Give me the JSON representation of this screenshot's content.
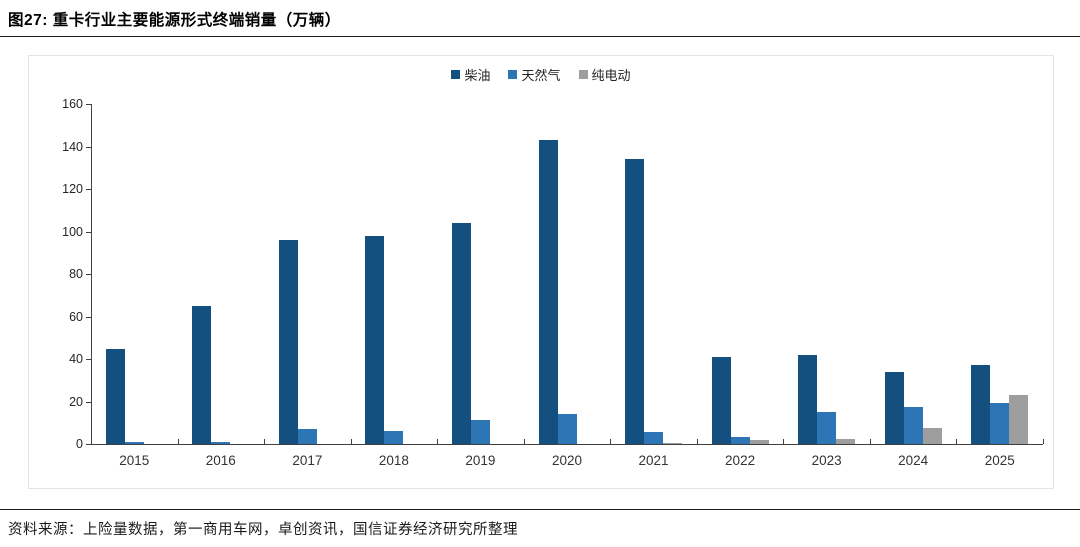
{
  "header": {
    "title": "图27: 重卡行业主要能源形式终端销量（万辆）"
  },
  "footer": {
    "source": "资料来源：上险量数据，第一商用车网，卓创资讯，国信证券经济研究所整理"
  },
  "chart_data": {
    "type": "bar",
    "title": "重卡行业主要能源形式终端销量（万辆）",
    "categories": [
      "2015",
      "2016",
      "2017",
      "2018",
      "2019",
      "2020",
      "2021",
      "2022",
      "2023",
      "2024",
      "2025"
    ],
    "series": [
      {
        "name": "柴油",
        "id": "diesel",
        "color": "#134F7F",
        "values": [
          44.5,
          65,
          96,
          98,
          104,
          143,
          134,
          41,
          42,
          34,
          37
        ]
      },
      {
        "name": "天然气",
        "id": "natural-gas",
        "color": "#2E75B6",
        "values": [
          1,
          1,
          7,
          6,
          11.5,
          14,
          5.5,
          3.5,
          15,
          17.5,
          19.5
        ]
      },
      {
        "name": "纯电动",
        "id": "pure-electric",
        "color": "#9E9E9E",
        "values": [
          0,
          0,
          0,
          0,
          0,
          0,
          0.5,
          2,
          2.5,
          7.5,
          23
        ]
      }
    ],
    "xlabel": "",
    "ylabel": "",
    "ylim": [
      0,
      160
    ],
    "ytick_step": 20,
    "grid": false,
    "legend_position": "top-center"
  }
}
